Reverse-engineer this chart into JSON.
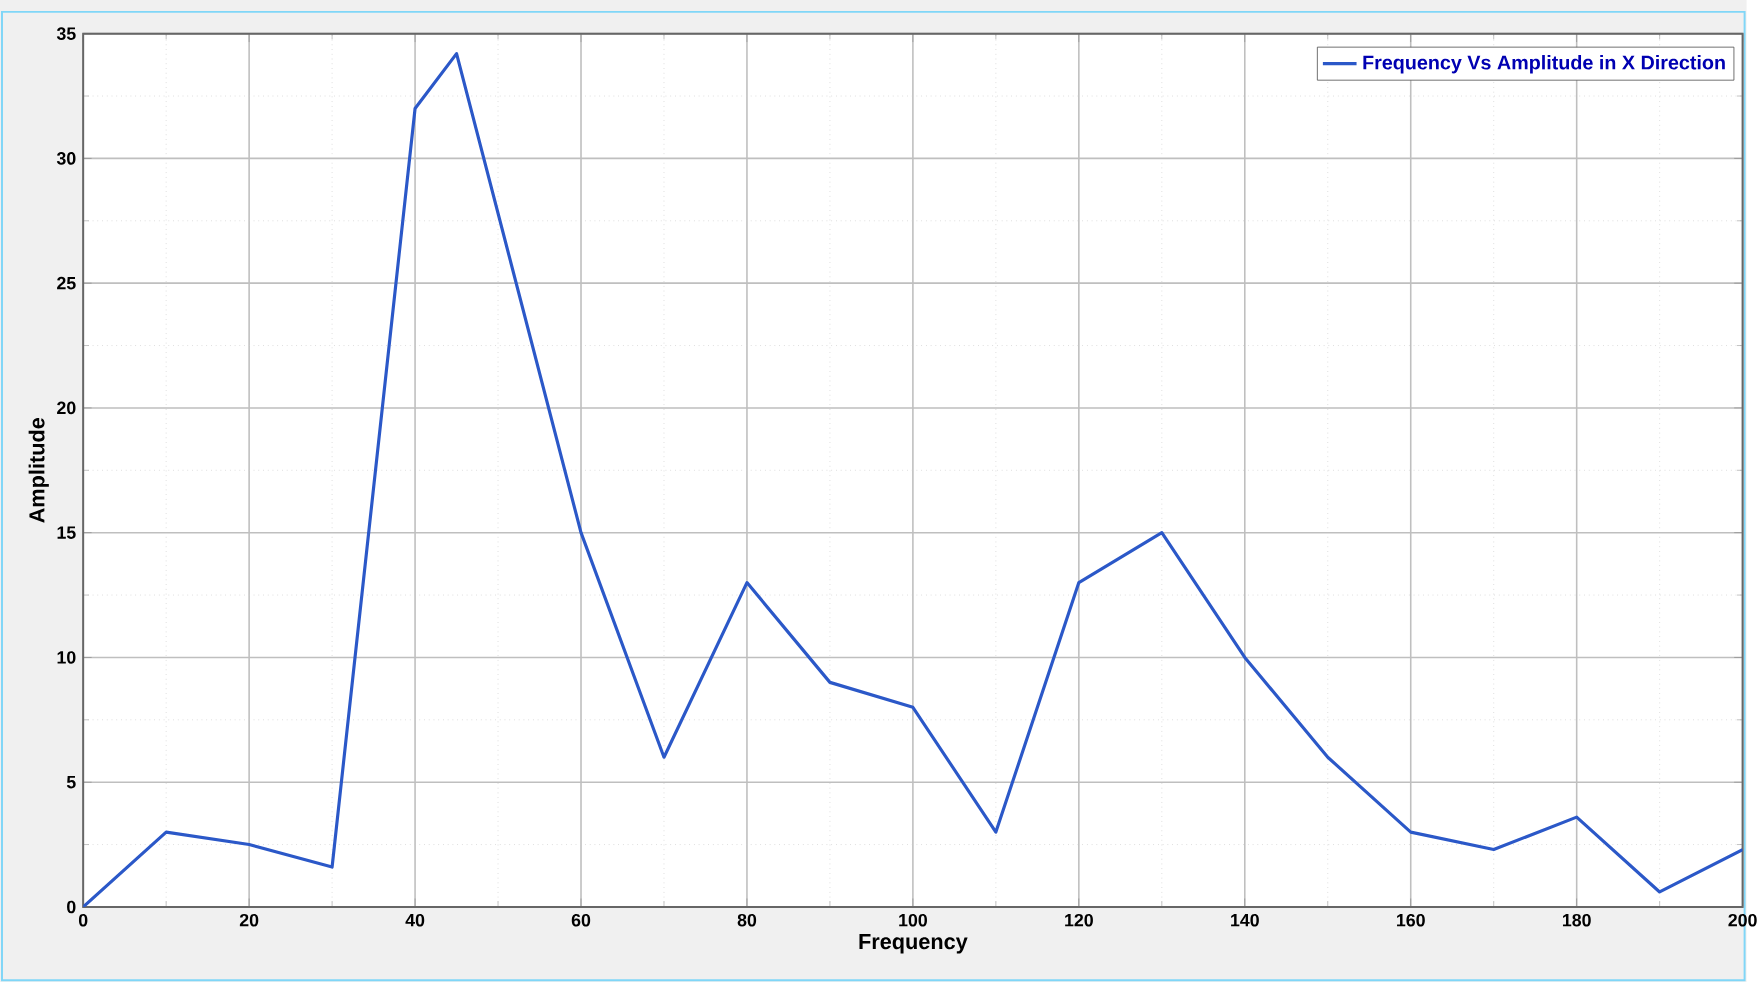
{
  "chart_data": {
    "type": "line",
    "xlabel": "Frequency",
    "ylabel": "Amplitude",
    "x": [
      0,
      10,
      20,
      30,
      40,
      45,
      60,
      70,
      80,
      90,
      100,
      110,
      120,
      130,
      140,
      150,
      160,
      170,
      180,
      190,
      200
    ],
    "series": [
      {
        "name": "Frequency Vs Amplitude in X Direction",
        "color": "#2b58c8",
        "values": [
          0,
          3,
          2.5,
          1.6,
          32,
          34.2,
          15,
          6,
          13,
          9,
          8,
          3,
          13,
          15,
          10,
          6,
          3,
          2.3,
          3.6,
          0.6,
          2.3
        ]
      }
    ],
    "xlim": [
      0,
      200
    ],
    "xticks": [
      0,
      20,
      40,
      60,
      80,
      100,
      120,
      140,
      160,
      180,
      200
    ],
    "ylim": [
      0,
      35
    ],
    "yticks": [
      0,
      5,
      10,
      15,
      20,
      25,
      30,
      35
    ],
    "grid": true,
    "legend": "top right",
    "marker": "none",
    "line_style": "solid"
  }
}
